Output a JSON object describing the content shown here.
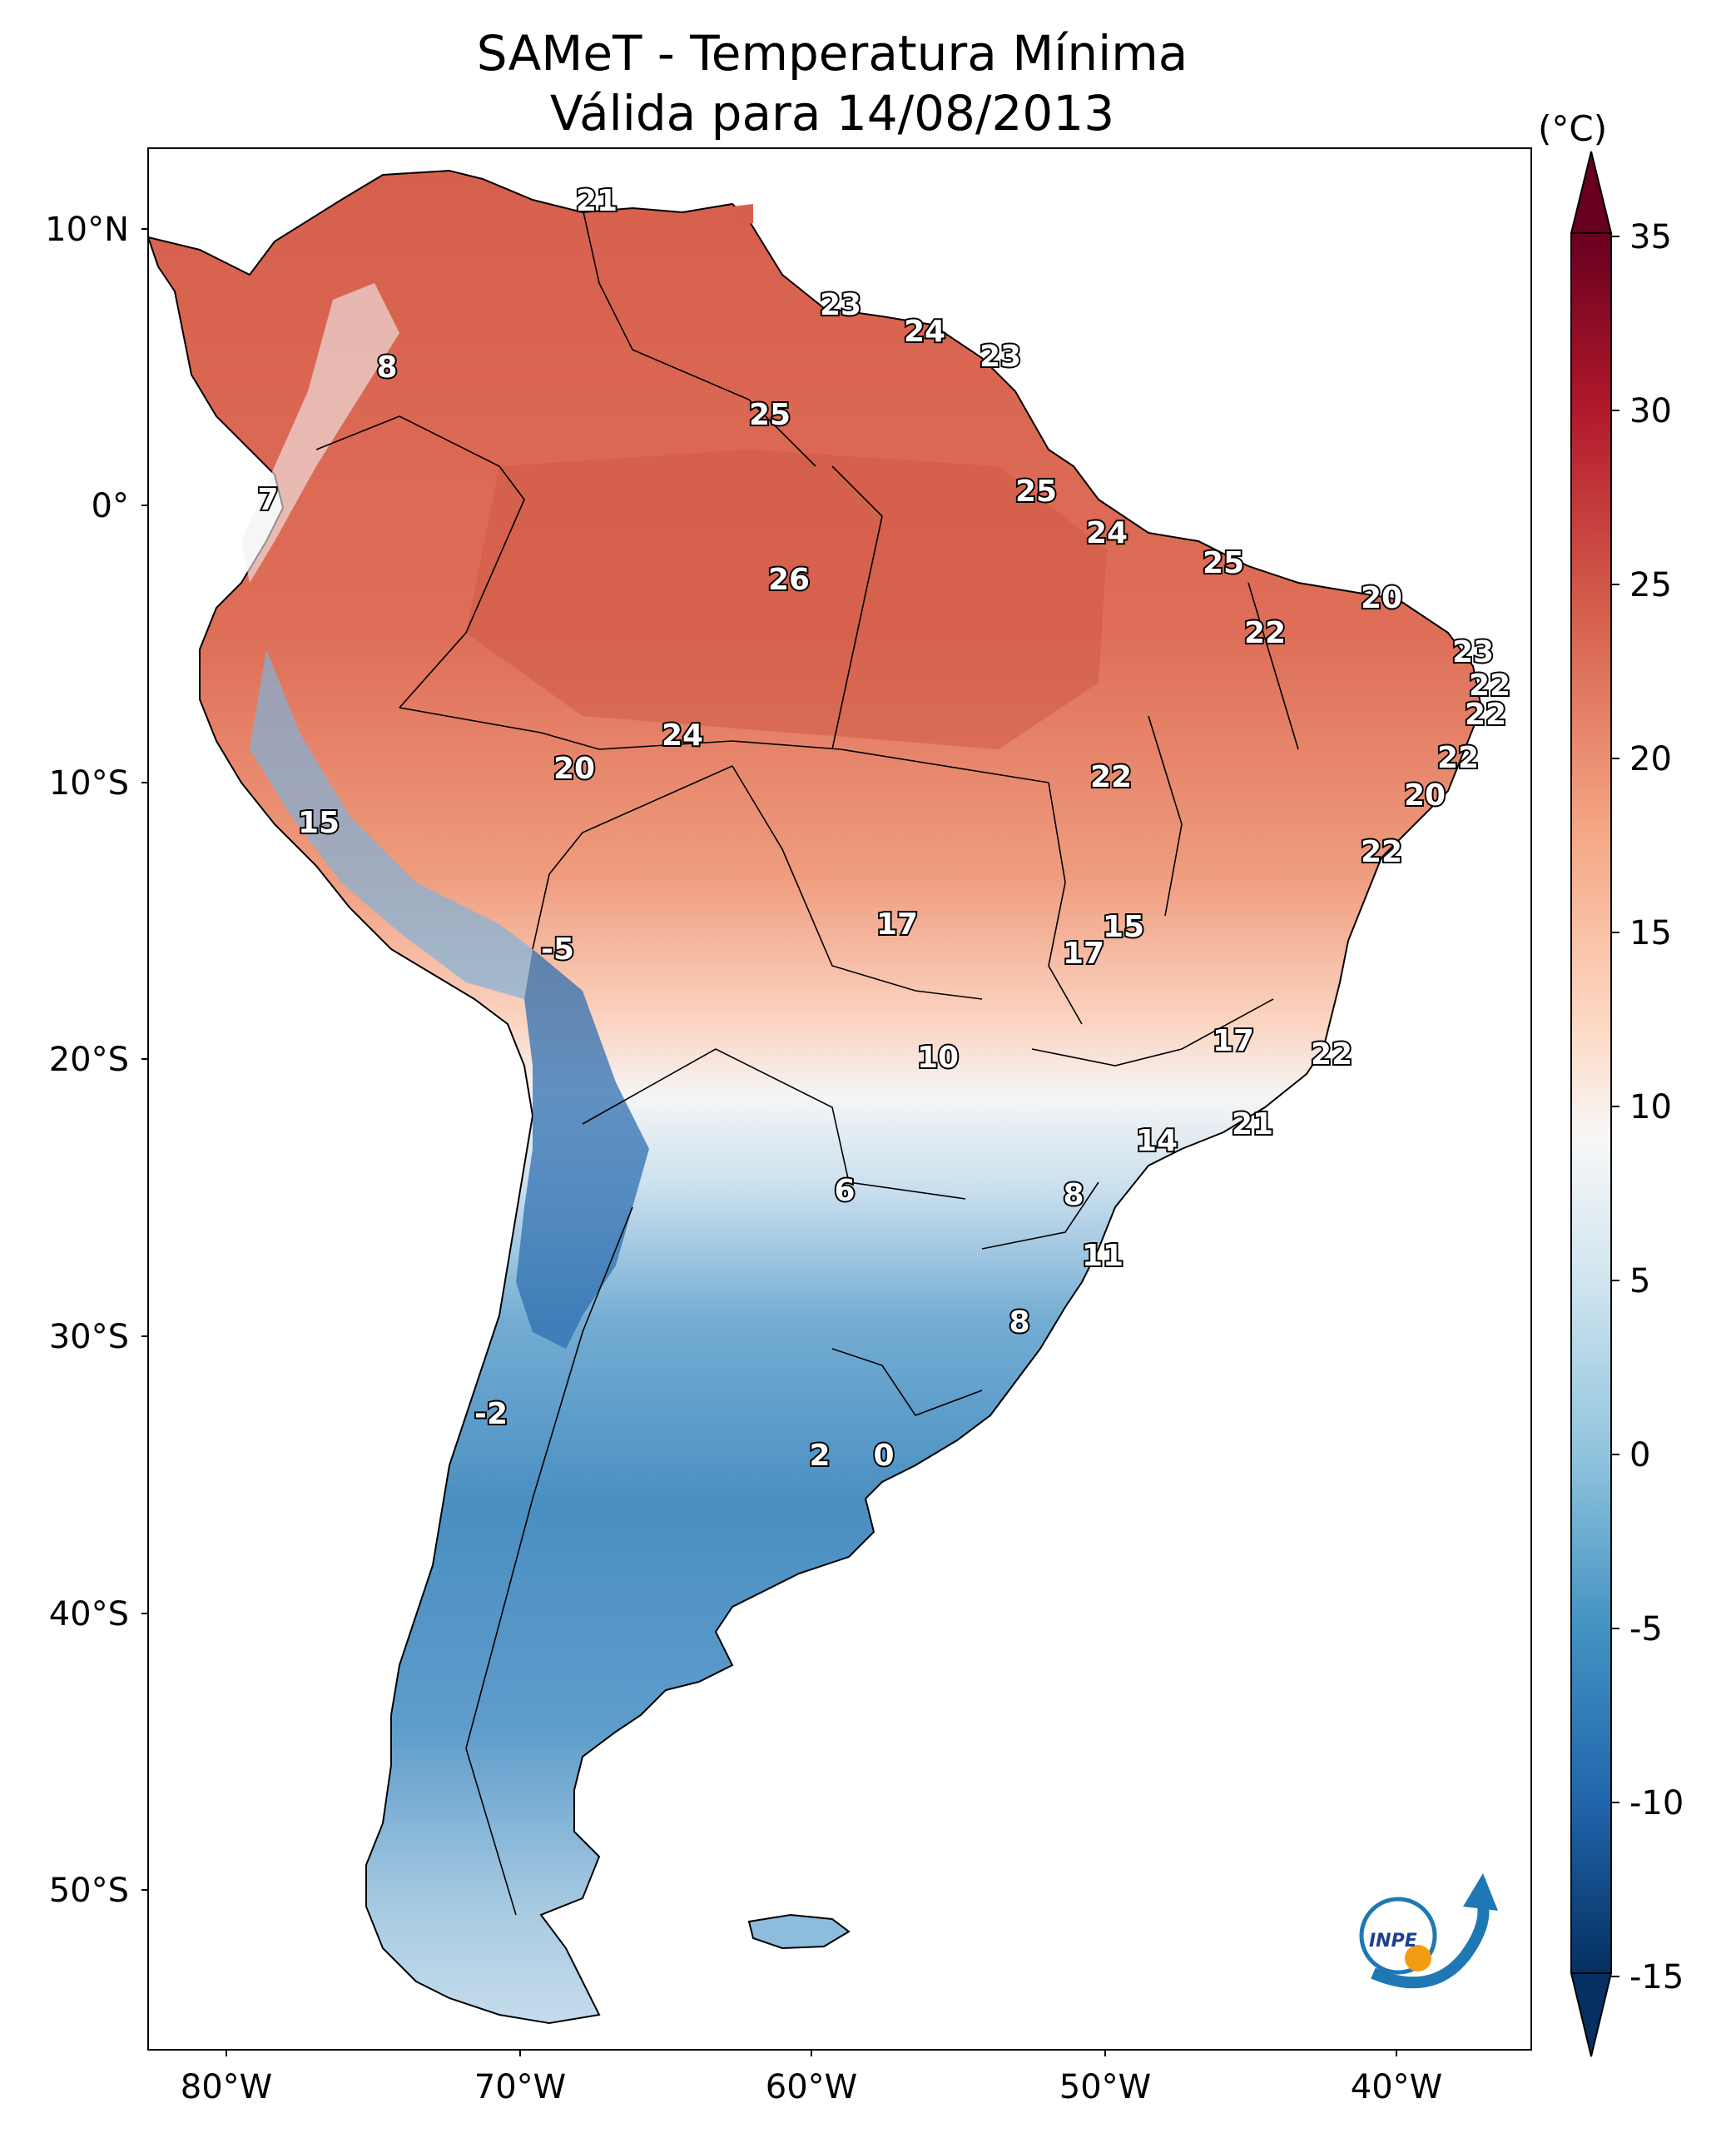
{
  "title": {
    "line1": "SAMeT - Temperatura Mínima",
    "line2": "Válida para 14/08/2013"
  },
  "colorbar": {
    "unit": "(°C)",
    "ticks": [
      "35",
      "30",
      "25",
      "20",
      "15",
      "10",
      "5",
      "0",
      "-5",
      "-10",
      "-15"
    ]
  },
  "axes": {
    "lat_labels": [
      "10°N",
      "0°",
      "10°S",
      "20°S",
      "30°S",
      "40°S",
      "50°S"
    ],
    "lon_labels": [
      "80°W",
      "70°W",
      "60°W",
      "50°W",
      "40°W"
    ]
  },
  "temperature_labels": [
    "21",
    "23",
    "24",
    "23",
    "8",
    "25",
    "7",
    "25",
    "24",
    "25",
    "26",
    "20",
    "22",
    "23",
    "22",
    "22",
    "24",
    "20",
    "22",
    "22",
    "20",
    "15",
    "22",
    "17",
    "15",
    "17",
    "-5",
    "10",
    "17",
    "22",
    "21",
    "14",
    "6",
    "8",
    "11",
    "8",
    "-2",
    "2",
    "0"
  ],
  "logo": {
    "text": "INPE"
  },
  "colors": {
    "warm": "#d6604d",
    "hot": "#b2182b",
    "neutral": "#f7f7f7",
    "cool": "#92c5de",
    "cold": "#2166ac",
    "coldest": "#053061"
  }
}
